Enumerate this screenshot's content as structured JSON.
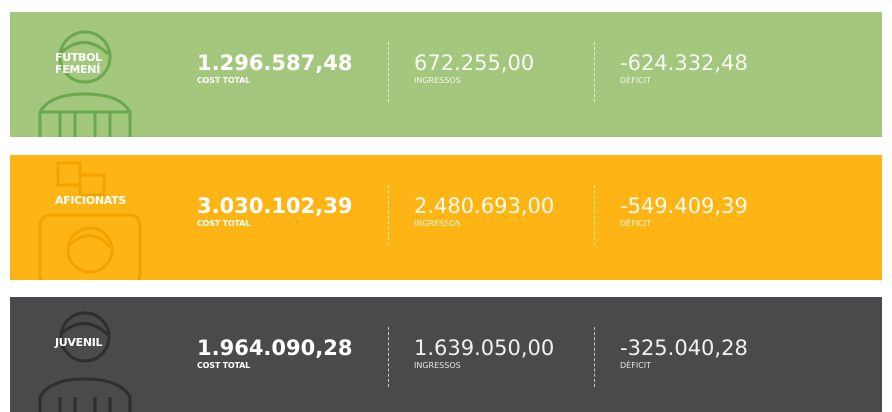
{
  "rows": [
    {
      "label": [
        "FUTBOL",
        "FEMENÍ"
      ],
      "cost": "1.296.587,48",
      "cost_label": "COST TOTAL",
      "income": "672.255,00",
      "income_label": "INGRESSOS",
      "deficit": "-624.332,48",
      "deficit_label": "DÈFICIT"
    },
    {
      "label": [
        "AFICIONATS"
      ],
      "cost": "3.030.102,39",
      "cost_label": "COST TOTAL",
      "income": "2.480.693,00",
      "income_label": "INGRESSOS",
      "deficit": "-549.409,39",
      "deficit_label": "DÈFICIT"
    },
    {
      "label": [
        "JUVENIL"
      ],
      "cost": "1.964.090,28",
      "cost_label": "COST TOTAL",
      "income": "1.639.050,00",
      "income_label": "INGRESSOS",
      "deficit": "-325.040,28",
      "deficit_label": "DÈFICIT"
    }
  ]
}
